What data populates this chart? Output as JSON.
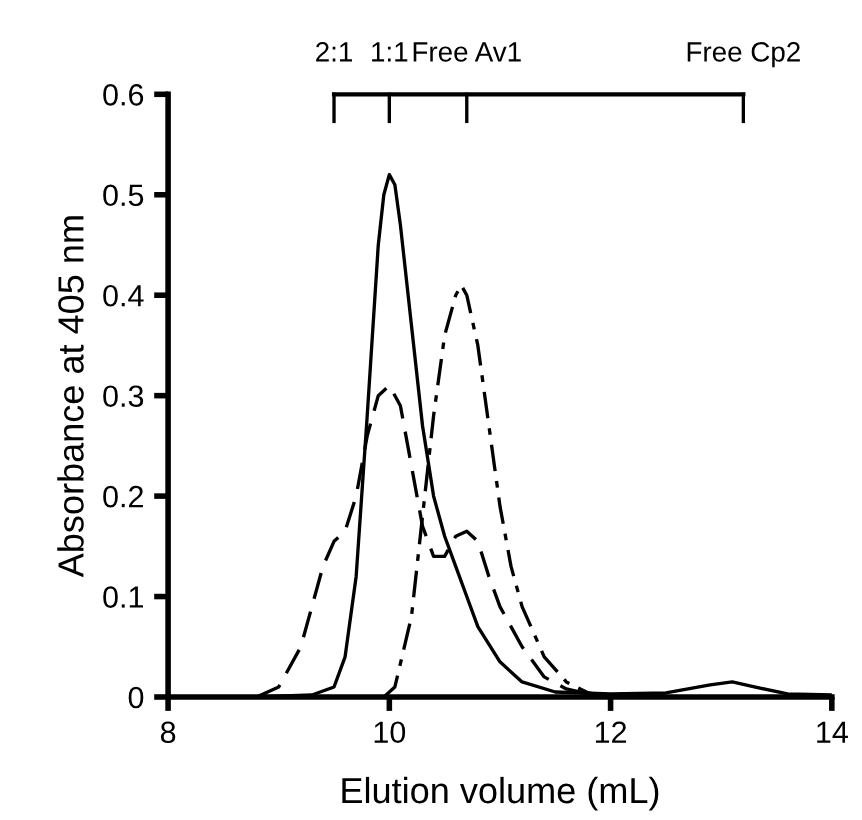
{
  "chart_data": {
    "type": "line",
    "xlabel": "Elution volume (mL)",
    "ylabel": "Absorbance at 405 nm",
    "xlim": [
      8,
      14
    ],
    "ylim": [
      0,
      0.6
    ],
    "xticks": [
      8,
      10,
      12,
      14
    ],
    "yticks": [
      0,
      0.1,
      0.2,
      0.3,
      0.4,
      0.5,
      0.6
    ],
    "grid": false,
    "legend": false,
    "marker": "none",
    "series": [
      {
        "color": "#000000",
        "line_style": "solid",
        "x": [
          8.0,
          8.8,
          9.3,
          9.5,
          9.6,
          9.7,
          9.8,
          9.9,
          9.95,
          10.0,
          10.05,
          10.1,
          10.2,
          10.3,
          10.4,
          10.5,
          10.6,
          10.7,
          10.8,
          11.0,
          11.2,
          11.5,
          12.0,
          12.5,
          12.9,
          13.1,
          13.3,
          13.6,
          14.0
        ],
        "values": [
          0,
          0,
          0.002,
          0.01,
          0.04,
          0.12,
          0.28,
          0.45,
          0.5,
          0.52,
          0.51,
          0.47,
          0.37,
          0.27,
          0.2,
          0.16,
          0.13,
          0.1,
          0.07,
          0.035,
          0.015,
          0.005,
          0.003,
          0.004,
          0.012,
          0.015,
          0.01,
          0.003,
          0.002
        ]
      },
      {
        "color": "#000000",
        "line_style": "dashed",
        "x": [
          8.8,
          9.0,
          9.2,
          9.4,
          9.5,
          9.6,
          9.7,
          9.8,
          9.9,
          10.0,
          10.1,
          10.2,
          10.3,
          10.4,
          10.5,
          10.6,
          10.7,
          10.8,
          10.9,
          11.0,
          11.2,
          11.4,
          11.6,
          11.8,
          12.0
        ],
        "values": [
          0,
          0.01,
          0.05,
          0.13,
          0.155,
          0.165,
          0.2,
          0.26,
          0.3,
          0.31,
          0.29,
          0.23,
          0.17,
          0.14,
          0.14,
          0.16,
          0.165,
          0.155,
          0.12,
          0.09,
          0.05,
          0.02,
          0.008,
          0.003,
          0.0
        ]
      },
      {
        "color": "#000000",
        "line_style": "dashdot",
        "x": [
          9.95,
          10.05,
          10.2,
          10.3,
          10.4,
          10.5,
          10.6,
          10.65,
          10.7,
          10.8,
          10.9,
          11.0,
          11.1,
          11.2,
          11.4,
          11.6,
          11.8,
          12.0
        ],
        "values": [
          0,
          0.01,
          0.08,
          0.18,
          0.28,
          0.36,
          0.4,
          0.41,
          0.4,
          0.35,
          0.27,
          0.19,
          0.13,
          0.09,
          0.04,
          0.015,
          0.004,
          0.0
        ]
      }
    ],
    "annotations": [
      "2:1",
      "1:1",
      "Free Av1",
      "Free Cp2"
    ]
  }
}
